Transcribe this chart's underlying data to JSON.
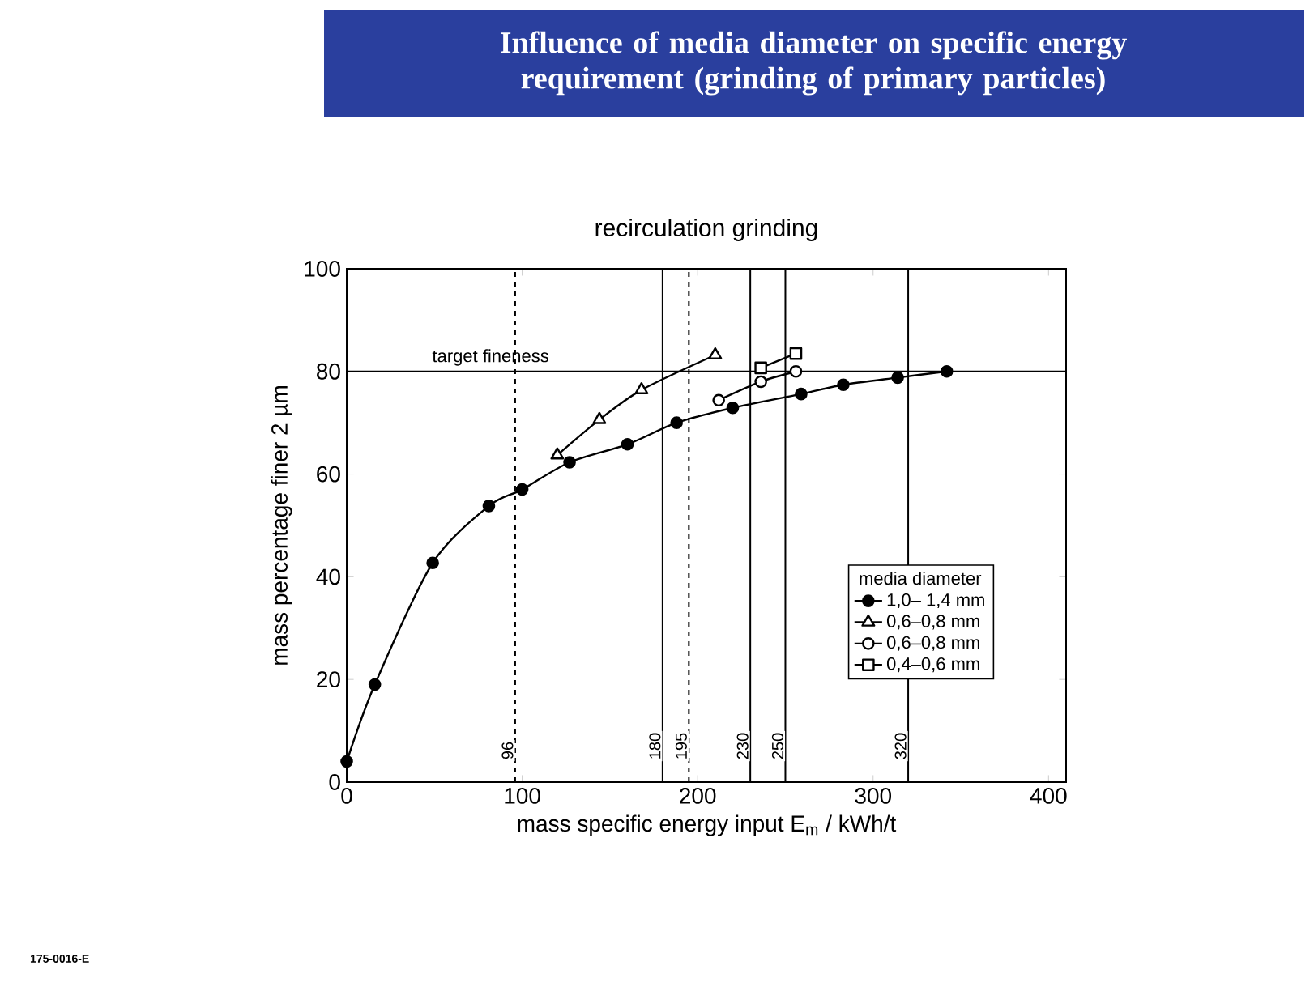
{
  "chart_data": {
    "type": "line",
    "title": "Influence of media diameter on specific energy requirement (grinding of primary particles)",
    "subtitle": "recirculation grinding",
    "xlabel": "mass specific energy input E$_{m}$ / kWh/t",
    "ylabel": "mass percentage finer 2 µm",
    "legend_title": "media diameter",
    "xlim": [
      0,
      410
    ],
    "ylim": [
      0,
      100
    ],
    "xticks": [
      0,
      100,
      200,
      300,
      400
    ],
    "yticks": [
      0,
      20,
      40,
      60,
      80,
      100
    ],
    "legend": "right",
    "grid": false,
    "line_style": "solid",
    "series": [
      {
        "name": "1,0– 1,4  mm",
        "color": "#000000",
        "marker": "circle",
        "x": [
          0,
          16,
          49,
          81,
          100,
          127,
          160,
          188,
          220,
          259,
          283,
          314,
          342
        ],
        "values": [
          4,
          19,
          42.7,
          53.8,
          57,
          62.3,
          65.8,
          70,
          72.9,
          75.6,
          77.4,
          78.8,
          80
        ]
      },
      {
        "name": "0,6–0,8  mm",
        "color": "#000000",
        "marker": "triangle",
        "x": [
          120,
          144,
          168,
          210
        ],
        "values": [
          63.7,
          70.6,
          76.4,
          83.2
        ]
      },
      {
        "name": "0,6–0,8  mm",
        "color": "#000000",
        "marker": "circle",
        "x": [
          212,
          236,
          256
        ],
        "values": [
          74.4,
          78,
          80
        ]
      },
      {
        "name": "0,4–0,6  mm",
        "color": "#000000",
        "marker": "square",
        "x": [
          236,
          256
        ],
        "values": [
          80.7,
          83.5
        ]
      }
    ],
    "ref_lines": [
      {
        "axis": "y",
        "value": 80,
        "label": "target fineness",
        "line_style": "solid"
      },
      {
        "axis": "x",
        "value": 96,
        "label": "96",
        "line_style": "dashed"
      },
      {
        "axis": "x",
        "value": 180,
        "label": "180",
        "line_style": "solid"
      },
      {
        "axis": "x",
        "value": 195,
        "label": "195",
        "line_style": "dashed"
      },
      {
        "axis": "x",
        "value": 230,
        "label": "230",
        "line_style": "solid"
      },
      {
        "axis": "x",
        "value": 250,
        "label": "250",
        "line_style": "solid"
      },
      {
        "axis": "x",
        "value": 320,
        "label": "320",
        "line_style": "solid"
      }
    ],
    "annotations": [
      "175-0016-E"
    ]
  }
}
